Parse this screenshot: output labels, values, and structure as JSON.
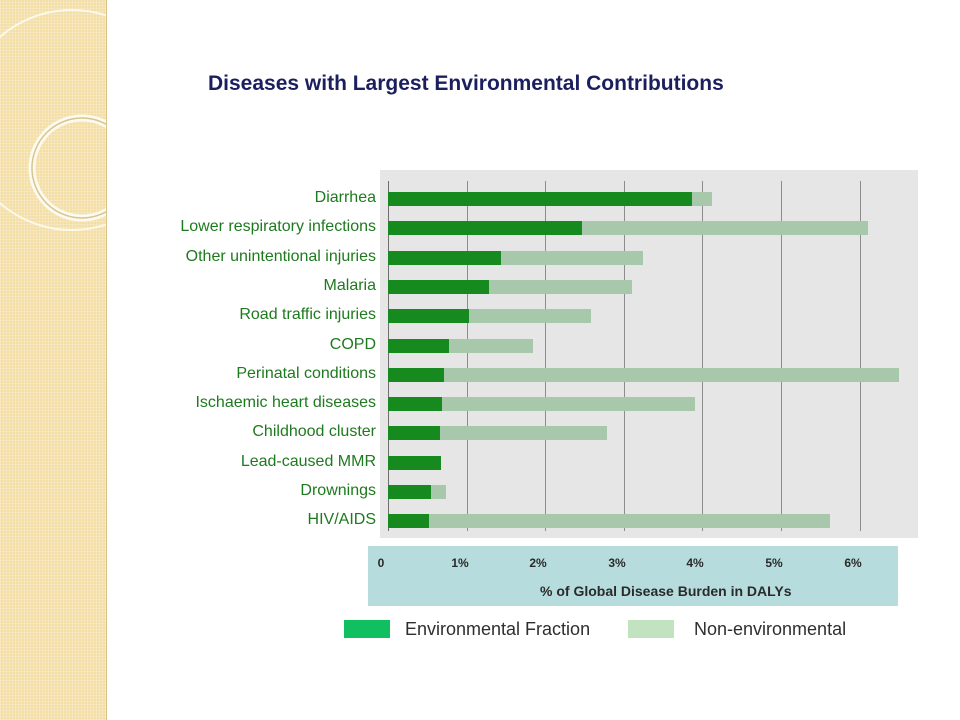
{
  "colors": {
    "environmental_bar": "#168a1e",
    "non_environmental_bar": "#a8c8ac",
    "plot_background": "#e6e6e6",
    "axis_band": "#b6dcdd",
    "legend_environmental": "#10c060",
    "legend_non_environmental": "#c2e3c0",
    "title": "#1b1f5e",
    "category_text": "#1e7a1e"
  },
  "chart_data": {
    "type": "bar",
    "orientation": "horizontal",
    "stacked": true,
    "title": "Diseases with Largest Environmental Contributions",
    "xlabel": "% of Global Disease Burden in DALYs",
    "ylabel": "",
    "xlim": [
      0,
      6.5
    ],
    "x_ticks": [
      "0",
      "1%",
      "2%",
      "3%",
      "4%",
      "5%",
      "6%"
    ],
    "x_tick_values": [
      0,
      1,
      2,
      3,
      4,
      5,
      6
    ],
    "grid": true,
    "legend_position": "bottom",
    "categories": [
      "Diarrhea",
      "Lower respiratory  infections",
      "Other unintentional injuries",
      "Malaria",
      "Road traffic injuries",
      "COPD",
      "Perinatal conditions",
      "Ischaemic heart diseases",
      "Childhood cluster",
      "Lead-caused MMR",
      "Drownings",
      "HIV/AIDS"
    ],
    "series": [
      {
        "name": "Environmental Fraction",
        "values": [
          3.87,
          2.47,
          1.44,
          1.28,
          1.03,
          0.78,
          0.71,
          0.69,
          0.66,
          0.67,
          0.55,
          0.52
        ]
      },
      {
        "name": "Non-environmental",
        "values": [
          0.25,
          3.64,
          1.8,
          1.82,
          1.55,
          1.07,
          5.79,
          3.22,
          2.12,
          0.0,
          0.19,
          5.1
        ]
      }
    ]
  }
}
